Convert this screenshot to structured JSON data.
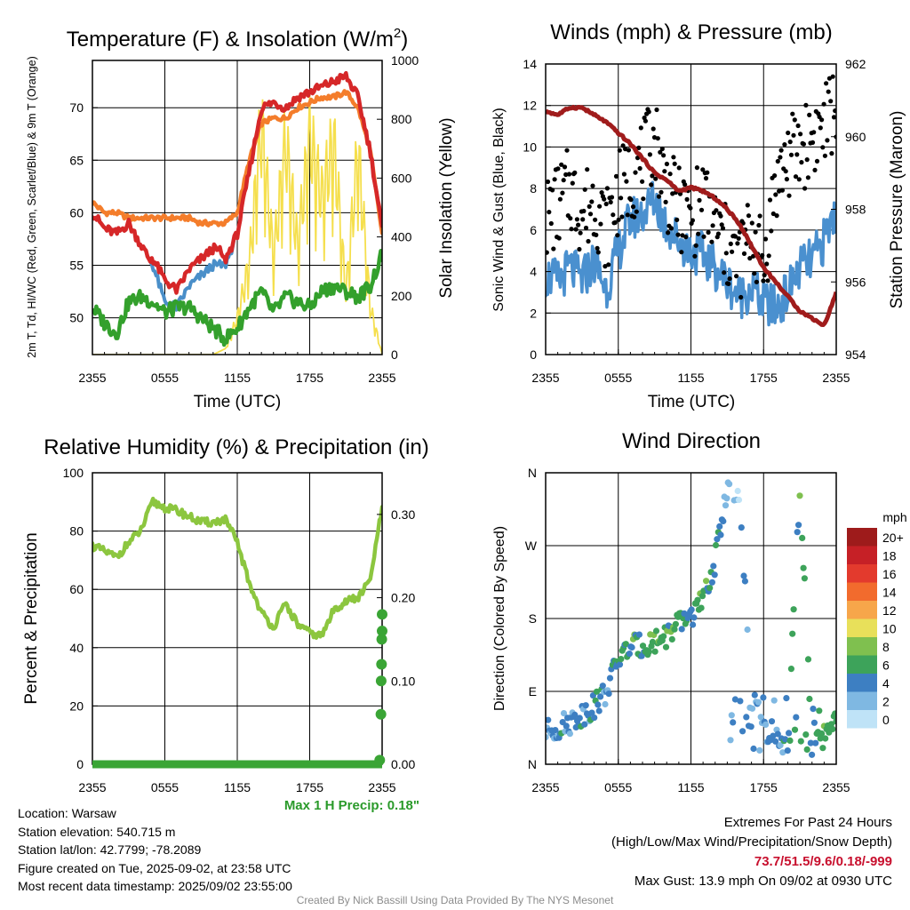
{
  "panels": {
    "temperature": {
      "title_main": "Temperature (F) & Insolation (W/m",
      "title_sup": "2",
      "title_end": ")",
      "ylabel_left": "2m T, Td, HI/WC (Red, Green, Scarlet/Blue) & 9m T (Orange)",
      "ylabel_right": "Solar Insolation (Yellow)",
      "xlabel": "Time (UTC)"
    },
    "winds": {
      "title": "Winds (mph) & Pressure (mb)",
      "ylabel_left": "Sonic Wind & Gust (Blue, Black)",
      "ylabel_right": "Station Pressure (Maroon)",
      "xlabel": "Time (UTC)"
    },
    "humidity": {
      "title": "Relative Humidity (%) & Precipitation (in)",
      "ylabel_left": "Percent & Precipitation",
      "max_precip_label": "Max 1 H Precip: 0.18\""
    },
    "direction": {
      "title": "Wind Direction",
      "ylabel_left": "Direction (Colored By Speed)",
      "colorbar_title": "mph",
      "colorbar_labels": [
        "20+",
        "18",
        "16",
        "14",
        "12",
        "10",
        "8",
        "6",
        "4",
        "2",
        "0"
      ]
    }
  },
  "info_left": {
    "location": "Location: Warsaw",
    "elevation": "Station elevation: 540.715 m",
    "latlon": "Station lat/lon: 42.7799; -78.2089",
    "created": "Figure created on Tue, 2025-09-02, at 23:58 UTC",
    "recent": "Most recent data timestamp: 2025/09/02 23:55:00"
  },
  "info_right": {
    "extremes_title": "Extremes For Past 24 Hours",
    "extremes_legend": "(High/Low/Max Wind/Precipitation/Snow Depth)",
    "extremes_values": "73.7/51.5/9.6/0.18/-999",
    "max_gust": "Max Gust: 13.9 mph On 09/02 at 0930 UTC"
  },
  "footer": "Created By Nick Bassill Using Data Provided By The NYS Mesonet",
  "colors": {
    "temp_2m": "#d62728",
    "temp_9m": "#f47d2b",
    "dewpoint": "#33a02c",
    "heat_index": "#4a8fc9",
    "insolation": "#f5df4d",
    "sonic_wind": "#4a90cf",
    "gust": "#000000",
    "pressure": "#a01c1c",
    "humidity": "#8cc63f",
    "precip": "#3aa535",
    "max_precip_text": "#2a9a2a",
    "colorbar": [
      "#9e1b1b",
      "#c62026",
      "#e33a2d",
      "#f26b2d",
      "#f7a64a",
      "#e8e05a",
      "#7fc04f",
      "#3da35a",
      "#3d7fc2",
      "#7fb8e2",
      "#bfe3f7"
    ]
  },
  "chart_data": [
    {
      "type": "line",
      "title": "Temperature (F) & Insolation (W/m2)",
      "xlabel": "Time (UTC)",
      "ylabel": "2m T, Td, HI/WC (Red, Green, Scarlet/Blue) & 9m T (Orange)",
      "ylabel_right": "Solar Insolation (Yellow)",
      "x_ticks": [
        "2355",
        "0555",
        "1155",
        "1755",
        "2355"
      ],
      "ylim": [
        46.5,
        74.5
      ],
      "y_ticks": [
        50,
        55,
        60,
        65,
        70
      ],
      "ylim_right": [
        0,
        1000
      ],
      "y_ticks_right": [
        0,
        200,
        400,
        600,
        800,
        1000
      ],
      "x_hours": [
        0,
        1,
        2,
        3,
        4,
        5,
        6,
        7,
        8,
        9,
        10,
        11,
        12,
        13,
        14,
        15,
        16,
        17,
        18,
        19,
        20,
        21,
        22,
        23,
        24
      ],
      "series": [
        {
          "name": "9m T (Orange)",
          "axis": "left",
          "values": [
            61,
            60,
            60,
            59.5,
            59.5,
            59.5,
            59.5,
            59.5,
            59.5,
            59,
            59,
            59,
            60,
            65,
            68.5,
            69,
            69,
            70,
            70.5,
            71,
            71,
            71.5,
            70,
            66,
            58
          ]
        },
        {
          "name": "2m T (Red)",
          "axis": "left",
          "values": [
            60,
            58.5,
            58,
            59,
            57,
            55,
            53,
            52,
            54,
            55,
            56,
            55.5,
            58,
            64,
            70,
            70.5,
            70,
            71,
            71.5,
            72,
            72.5,
            73,
            71,
            66,
            58.5
          ]
        },
        {
          "name": "HI/WC (Scarlet/Blue)",
          "axis": "left",
          "values": [
            60,
            58.5,
            58,
            59,
            57,
            55,
            51.5,
            51,
            53,
            54,
            55,
            55,
            58,
            64,
            70,
            70.5,
            70,
            71,
            71.5,
            72,
            72.5,
            73,
            71,
            66,
            58.5
          ]
        },
        {
          "name": "Td (Green)",
          "axis": "left",
          "values": [
            51,
            49.5,
            48.5,
            51.5,
            52,
            51.5,
            50.5,
            51,
            51,
            50,
            49,
            48,
            49,
            51,
            52.5,
            50.5,
            52,
            51.5,
            51,
            52.5,
            53,
            52.5,
            52,
            53,
            56
          ]
        },
        {
          "name": "Solar Insolation (Yellow)",
          "axis": "right",
          "values": [
            0,
            0,
            0,
            0,
            0,
            0,
            0,
            0,
            0,
            0,
            0,
            20,
            150,
            380,
            950,
            400,
            880,
            450,
            900,
            650,
            880,
            250,
            850,
            200,
            0
          ]
        }
      ]
    },
    {
      "type": "line",
      "title": "Winds (mph) & Pressure (mb)",
      "xlabel": "Time (UTC)",
      "ylabel": "Sonic Wind & Gust (Blue, Black)",
      "ylabel_right": "Station Pressure (Maroon)",
      "x_ticks": [
        "2355",
        "0555",
        "1155",
        "1755",
        "2355"
      ],
      "ylim": [
        0,
        14
      ],
      "y_ticks": [
        0,
        2,
        4,
        6,
        8,
        10,
        12,
        14
      ],
      "ylim_right": [
        954,
        962
      ],
      "y_ticks_right": [
        954,
        956,
        958,
        960,
        962
      ],
      "x_hours": [
        0,
        1,
        2,
        3,
        4,
        5,
        6,
        7,
        8,
        9,
        10,
        11,
        12,
        13,
        14,
        15,
        16,
        17,
        18,
        19,
        20,
        21,
        22,
        23,
        24
      ],
      "series": [
        {
          "name": "Sonic Wind (Blue)",
          "axis": "left",
          "values": [
            3.8,
            3.5,
            4.2,
            3.6,
            4.5,
            3.2,
            5.0,
            6.5,
            6.8,
            7.5,
            6.2,
            5.5,
            5.0,
            4.8,
            4.2,
            3.5,
            2.8,
            3.2,
            2.5,
            2.2,
            3.0,
            4.2,
            4.5,
            5.5,
            7.0
          ]
        },
        {
          "name": "Gust (Black)",
          "axis": "left",
          "values": [
            6.5,
            7.2,
            8.0,
            6.8,
            7.5,
            6.0,
            7.8,
            8.5,
            9.2,
            10.5,
            8.0,
            7.0,
            6.5,
            7.5,
            6.2,
            5.0,
            4.5,
            6.0,
            4.2,
            8.2,
            9.5,
            9.8,
            10.5,
            11.0,
            12.0
          ]
        },
        {
          "name": "Station Pressure (Maroon)",
          "axis": "right",
          "values": [
            960.7,
            960.6,
            960.8,
            960.8,
            960.6,
            960.4,
            960.1,
            959.8,
            959.4,
            959.0,
            958.8,
            958.5,
            958.6,
            958.5,
            958.3,
            958.0,
            957.6,
            957.0,
            956.4,
            956.0,
            955.6,
            955.2,
            955.0,
            954.8,
            955.7
          ]
        }
      ]
    },
    {
      "type": "line",
      "title": "Relative Humidity (%) & Precipitation (in)",
      "ylabel": "Percent & Precipitation",
      "x_ticks": [
        "2355",
        "0555",
        "1155",
        "1755",
        "2355"
      ],
      "ylim": [
        0,
        100
      ],
      "y_ticks": [
        0,
        20,
        40,
        60,
        80,
        100
      ],
      "ylim_right": [
        0,
        0.35
      ],
      "y_ticks_right": [
        "0.00",
        "0.10",
        "0.20",
        "0.30"
      ],
      "x_hours": [
        0,
        1,
        2,
        3,
        4,
        5,
        6,
        7,
        8,
        9,
        10,
        11,
        12,
        13,
        14,
        15,
        16,
        17,
        18,
        19,
        20,
        21,
        22,
        23,
        24
      ],
      "series": [
        {
          "name": "Relative Humidity",
          "axis": "left",
          "values": [
            75,
            73,
            71,
            76,
            80,
            90,
            88,
            87,
            85,
            83,
            83,
            84,
            76,
            62,
            52,
            47,
            55,
            48,
            45,
            44,
            53,
            56,
            57,
            63,
            88
          ]
        },
        {
          "name": "Precipitation",
          "axis": "right",
          "x": [
            0,
            23.8,
            23.9,
            23.92,
            23.95,
            23.97,
            24,
            24
          ],
          "values": [
            0,
            0.005,
            0.06,
            0.1,
            0.12,
            0.15,
            0.18,
            0.16
          ]
        }
      ],
      "annotation": "Max 1 H Precip: 0.18\""
    },
    {
      "type": "scatter",
      "title": "Wind Direction",
      "ylabel": "Direction (Colored By Speed)",
      "x_ticks": [
        "2355",
        "0555",
        "1155",
        "1755",
        "2355"
      ],
      "y_ticks": [
        "N",
        "E",
        "S",
        "W",
        "N"
      ],
      "ylim": [
        0,
        360
      ],
      "colorbar_title": "mph",
      "colorbar_labels": [
        "0",
        "2",
        "4",
        "6",
        "8",
        "10",
        "12",
        "14",
        "16",
        "18",
        "20+"
      ],
      "x_hours": [
        0,
        1,
        2,
        3,
        4,
        5,
        6,
        7,
        8,
        9,
        10,
        11,
        12,
        13,
        14,
        15,
        16,
        17,
        18,
        19,
        20,
        21,
        22,
        23,
        24
      ],
      "direction_deg": [
        40,
        45,
        52,
        62,
        72,
        90,
        130,
        145,
        147,
        152,
        160,
        172,
        185,
        200,
        250,
        345,
        320,
        90,
        40,
        32,
        25,
        345,
        20,
        30,
        50
      ],
      "speed_mph": [
        3,
        4,
        3.5,
        4,
        4.5,
        4,
        5,
        5.5,
        6,
        7,
        6,
        5.5,
        5,
        6,
        5,
        3,
        2,
        3,
        2.5,
        4,
        4.5,
        6,
        5,
        6,
        7
      ]
    }
  ]
}
